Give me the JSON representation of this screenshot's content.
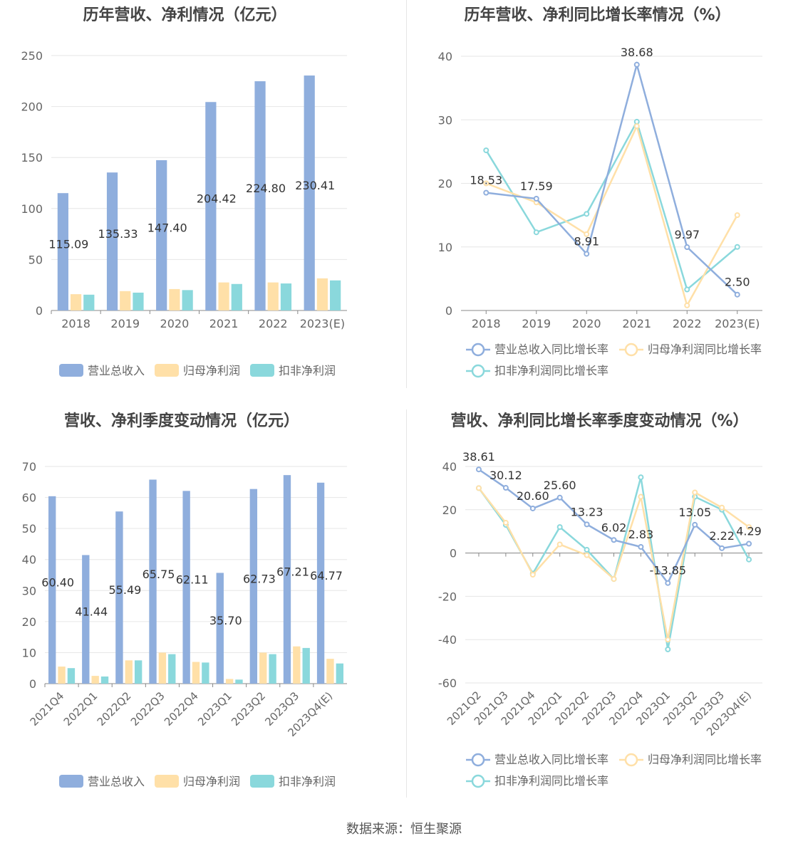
{
  "source_label": "数据来源：恒生聚源",
  "colors": {
    "revenue": "#8FAEDD",
    "parent_net": "#FFE0A8",
    "deducted_net": "#8AD8DC",
    "revenue_line": "#8FAEDD",
    "parent_line": "#FFE0A8",
    "deducted_line": "#8AD8DC",
    "grid": "#e6e6e6",
    "axis_text": "#666666",
    "title_text": "#444444"
  },
  "chart_data": [
    {
      "id": "annual_amount",
      "type": "bar",
      "title": "历年营收、净利情况（亿元）",
      "categories": [
        "2018",
        "2019",
        "2020",
        "2021",
        "2022",
        "2023(E)"
      ],
      "ylim": [
        0,
        250
      ],
      "yticks": [
        0,
        50,
        100,
        150,
        200,
        250
      ],
      "grid": true,
      "legend_position": "bottom",
      "series": [
        {
          "name": "营业总收入",
          "values": [
            115.09,
            135.33,
            147.4,
            204.42,
            224.8,
            230.41
          ],
          "labels": [
            "115.09",
            "135.33",
            "147.40",
            "204.42",
            "224.80",
            "230.41"
          ]
        },
        {
          "name": "归母净利润",
          "values": [
            16.0,
            19.0,
            21.0,
            27.5,
            27.5,
            31.5
          ]
        },
        {
          "name": "扣非净利润",
          "values": [
            15.5,
            17.5,
            20.0,
            26.0,
            26.5,
            29.5
          ]
        }
      ]
    },
    {
      "id": "annual_growth",
      "type": "line",
      "title": "历年营收、净利同比增长率情况（%）",
      "categories": [
        "2018",
        "2019",
        "2020",
        "2021",
        "2022",
        "2023(E)"
      ],
      "ylim": [
        0,
        40
      ],
      "yticks": [
        0,
        10,
        20,
        30,
        40
      ],
      "grid": true,
      "legend_position": "bottom",
      "series": [
        {
          "name": "营业总收入同比增长率",
          "values": [
            18.53,
            17.59,
            8.91,
            38.68,
            9.97,
            2.5
          ],
          "labels": [
            "18.53",
            "17.59",
            "8.91",
            "38.68",
            "9.97",
            "2.50"
          ]
        },
        {
          "name": "归母净利润同比增长率",
          "values": [
            20.0,
            17.0,
            12.0,
            29.0,
            0.8,
            15.0
          ]
        },
        {
          "name": "扣非净利润同比增长率",
          "values": [
            25.2,
            12.3,
            15.2,
            29.7,
            3.3,
            10.0
          ]
        }
      ]
    },
    {
      "id": "quarter_amount",
      "type": "bar",
      "title": "营收、净利季度变动情况（亿元）",
      "categories": [
        "2021Q4",
        "2022Q1",
        "2022Q2",
        "2022Q3",
        "2022Q4",
        "2023Q1",
        "2023Q2",
        "2023Q3",
        "2023Q4(E)"
      ],
      "ylim": [
        0,
        70
      ],
      "yticks": [
        0,
        10,
        20,
        30,
        40,
        50,
        60,
        70
      ],
      "grid": true,
      "legend_position": "bottom",
      "series": [
        {
          "name": "营业总收入",
          "values": [
            60.4,
            41.44,
            55.49,
            65.75,
            62.11,
            35.7,
            62.73,
            67.21,
            64.77
          ],
          "labels": [
            "60.40",
            "41.44",
            "55.49",
            "65.75",
            "62.11",
            "35.70",
            "62.73",
            "67.21",
            "64.77"
          ]
        },
        {
          "name": "归母净利润",
          "values": [
            5.5,
            2.5,
            7.5,
            10.0,
            7.0,
            1.5,
            10.0,
            12.0,
            8.0
          ]
        },
        {
          "name": "扣非净利润",
          "values": [
            5.0,
            2.3,
            7.5,
            9.5,
            6.8,
            1.3,
            9.5,
            11.5,
            6.5
          ]
        }
      ]
    },
    {
      "id": "quarter_growth",
      "type": "line",
      "title": "营收、净利同比增长率季度变动情况（%）",
      "categories": [
        "2021Q2",
        "2021Q3",
        "2021Q4",
        "2022Q1",
        "2022Q2",
        "2022Q3",
        "2022Q4",
        "2023Q1",
        "2023Q2",
        "2023Q3",
        "2023Q4(E)"
      ],
      "ylim": [
        -60,
        40
      ],
      "yticks": [
        -60,
        -40,
        -20,
        0,
        20,
        40
      ],
      "grid": true,
      "legend_position": "bottom",
      "series": [
        {
          "name": "营业总收入同比增长率",
          "values": [
            38.61,
            30.12,
            20.6,
            25.6,
            13.23,
            6.02,
            2.83,
            -13.85,
            13.05,
            2.22,
            4.29
          ],
          "labels": [
            "38.61",
            "30.12",
            "20.60",
            "25.60",
            "13.23",
            "6.02",
            "2.83",
            "-13.85",
            "13.05",
            "2.22",
            "4.29"
          ]
        },
        {
          "name": "归母净利润同比增长率",
          "values": [
            30.0,
            14.0,
            -10.0,
            4.0,
            -1.0,
            -12.0,
            26.0,
            -40.0,
            28.0,
            21.0,
            12.0
          ]
        },
        {
          "name": "扣非净利润同比增长率",
          "values": [
            30.0,
            13.0,
            -9.5,
            12.0,
            1.5,
            -12.0,
            35.0,
            -44.5,
            26.0,
            20.0,
            -3.0
          ]
        }
      ]
    }
  ]
}
